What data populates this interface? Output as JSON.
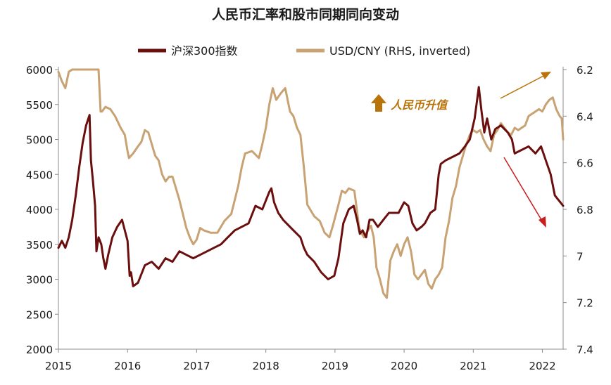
{
  "chart_data": {
    "type": "line",
    "title": "人民币汇率和股市同期同向变动",
    "annotation": "人民币升值",
    "left_axis": {
      "ylim": [
        2000,
        6000
      ],
      "ticks": [
        "2000",
        "2500",
        "3000",
        "3500",
        "4000",
        "4500",
        "5000",
        "5500",
        "6000"
      ]
    },
    "right_axis": {
      "ylim": [
        6.2,
        7.4
      ],
      "inverted": true,
      "ticks": [
        "6.2",
        "6.4",
        "6.6",
        "6.8",
        "7",
        "7.2",
        "7.4"
      ]
    },
    "x_axis": {
      "xlim": [
        2015.0,
        2022.3
      ],
      "ticks": [
        "2015",
        "2016",
        "2017",
        "2018",
        "2019",
        "2020",
        "2021",
        "2022"
      ]
    },
    "colors": {
      "csi300": "#6b0e0e",
      "usdcny": "#c8a273",
      "annot": "#b8730a",
      "arrow_up": "#b8730a",
      "arrow_down": "#c81e1e",
      "axis": "#8c8c8c"
    },
    "series": [
      {
        "name": "沪深300指数",
        "axis": "left",
        "x": [
          2015.0,
          2015.05,
          2015.1,
          2015.15,
          2015.2,
          2015.25,
          2015.3,
          2015.35,
          2015.4,
          2015.45,
          2015.47,
          2015.5,
          2015.53,
          2015.55,
          2015.58,
          2015.62,
          2015.65,
          2015.68,
          2015.72,
          2015.78,
          2015.85,
          2015.92,
          2015.96,
          2016.0,
          2016.03,
          2016.05,
          2016.08,
          2016.15,
          2016.25,
          2016.35,
          2016.45,
          2016.55,
          2016.65,
          2016.75,
          2016.85,
          2016.95,
          2017.05,
          2017.15,
          2017.25,
          2017.35,
          2017.45,
          2017.55,
          2017.65,
          2017.75,
          2017.85,
          2017.95,
          2018.05,
          2018.08,
          2018.12,
          2018.18,
          2018.25,
          2018.3,
          2018.4,
          2018.5,
          2018.55,
          2018.6,
          2018.7,
          2018.8,
          2018.9,
          2018.99,
          2019.05,
          2019.12,
          2019.2,
          2019.27,
          2019.32,
          2019.36,
          2019.4,
          2019.45,
          2019.5,
          2019.55,
          2019.62,
          2019.7,
          2019.78,
          2019.85,
          2019.92,
          2020.0,
          2020.06,
          2020.12,
          2020.18,
          2020.25,
          2020.3,
          2020.38,
          2020.45,
          2020.5,
          2020.53,
          2020.6,
          2020.7,
          2020.8,
          2020.88,
          2020.95,
          2021.02,
          2021.08,
          2021.12,
          2021.16,
          2021.2,
          2021.26,
          2021.32,
          2021.4,
          2021.5,
          2021.56,
          2021.6,
          2021.7,
          2021.8,
          2021.9,
          2021.98,
          2022.05,
          2022.12,
          2022.18,
          2022.22,
          2022.26,
          2022.3
        ],
        "values": [
          3450,
          3550,
          3450,
          3600,
          3850,
          4200,
          4600,
          4950,
          5200,
          5350,
          4700,
          4400,
          4050,
          3400,
          3600,
          3500,
          3300,
          3150,
          3350,
          3600,
          3750,
          3850,
          3700,
          3550,
          3050,
          3100,
          2900,
          2950,
          3200,
          3250,
          3150,
          3300,
          3250,
          3400,
          3350,
          3300,
          3350,
          3400,
          3450,
          3500,
          3600,
          3700,
          3750,
          3800,
          4050,
          4000,
          4250,
          4300,
          4100,
          3950,
          3850,
          3800,
          3700,
          3600,
          3450,
          3350,
          3250,
          3100,
          3000,
          3050,
          3300,
          3800,
          4000,
          4050,
          3850,
          3650,
          3700,
          3600,
          3850,
          3850,
          3750,
          3850,
          3950,
          3950,
          3950,
          4100,
          4050,
          3800,
          3700,
          3750,
          3800,
          3950,
          4000,
          4500,
          4650,
          4700,
          4750,
          4800,
          4900,
          5000,
          5300,
          5750,
          5400,
          5100,
          5300,
          5000,
          5150,
          5200,
          5100,
          5000,
          4800,
          4850,
          4900,
          4800,
          4900,
          4700,
          4500,
          4200,
          4150,
          4100,
          4050
        ]
      },
      {
        "name": "USD/CNY (RHS, inverted)",
        "axis": "right",
        "x": [
          2015.0,
          2015.05,
          2015.1,
          2015.15,
          2015.2,
          2015.3,
          2015.4,
          2015.5,
          2015.58,
          2015.61,
          2015.63,
          2015.68,
          2015.75,
          2015.82,
          2015.9,
          2015.96,
          2016.0,
          2016.02,
          2016.08,
          2016.15,
          2016.2,
          2016.25,
          2016.3,
          2016.35,
          2016.4,
          2016.45,
          2016.5,
          2016.55,
          2016.6,
          2016.65,
          2016.7,
          2016.75,
          2016.8,
          2016.85,
          2016.9,
          2016.95,
          2017.0,
          2017.05,
          2017.1,
          2017.2,
          2017.3,
          2017.4,
          2017.5,
          2017.55,
          2017.6,
          2017.65,
          2017.7,
          2017.8,
          2017.9,
          2017.95,
          2018.0,
          2018.05,
          2018.1,
          2018.15,
          2018.22,
          2018.28,
          2018.35,
          2018.4,
          2018.45,
          2018.5,
          2018.55,
          2018.6,
          2018.7,
          2018.78,
          2018.85,
          2018.92,
          2018.97,
          2019.05,
          2019.1,
          2019.15,
          2019.2,
          2019.28,
          2019.35,
          2019.38,
          2019.42,
          2019.48,
          2019.52,
          2019.56,
          2019.6,
          2019.65,
          2019.7,
          2019.75,
          2019.8,
          2019.85,
          2019.9,
          2019.95,
          2020.0,
          2020.05,
          2020.1,
          2020.15,
          2020.2,
          2020.25,
          2020.3,
          2020.35,
          2020.4,
          2020.45,
          2020.5,
          2020.55,
          2020.6,
          2020.65,
          2020.7,
          2020.75,
          2020.8,
          2020.85,
          2020.9,
          2020.95,
          2021.0,
          2021.05,
          2021.1,
          2021.15,
          2021.2,
          2021.25,
          2021.3,
          2021.35,
          2021.4,
          2021.45,
          2021.5,
          2021.55,
          2021.6,
          2021.65,
          2021.7,
          2021.75,
          2021.8,
          2021.85,
          2021.9,
          2021.95,
          2022.0,
          2022.05,
          2022.1,
          2022.15,
          2022.2,
          2022.25,
          2022.28,
          2022.3
        ],
        "values": [
          6.21,
          6.25,
          6.28,
          6.21,
          6.2,
          6.2,
          6.2,
          6.2,
          6.2,
          6.38,
          6.38,
          6.36,
          6.37,
          6.4,
          6.45,
          6.48,
          6.55,
          6.58,
          6.56,
          6.53,
          6.51,
          6.46,
          6.47,
          6.52,
          6.57,
          6.59,
          6.65,
          6.68,
          6.66,
          6.66,
          6.71,
          6.76,
          6.82,
          6.88,
          6.92,
          6.95,
          6.93,
          6.88,
          6.89,
          6.9,
          6.9,
          6.85,
          6.82,
          6.76,
          6.7,
          6.62,
          6.56,
          6.55,
          6.58,
          6.52,
          6.45,
          6.35,
          6.28,
          6.33,
          6.3,
          6.28,
          6.38,
          6.4,
          6.45,
          6.48,
          6.62,
          6.78,
          6.83,
          6.85,
          6.9,
          6.92,
          6.87,
          6.78,
          6.72,
          6.73,
          6.71,
          6.72,
          6.88,
          6.9,
          6.92,
          6.89,
          6.87,
          6.92,
          7.05,
          7.1,
          7.16,
          7.18,
          7.02,
          6.98,
          6.95,
          7.0,
          6.95,
          6.92,
          6.98,
          7.08,
          7.1,
          7.08,
          7.06,
          7.12,
          7.14,
          7.1,
          7.08,
          7.05,
          6.92,
          6.85,
          6.75,
          6.7,
          6.62,
          6.57,
          6.52,
          6.48,
          6.46,
          6.47,
          6.46,
          6.5,
          6.53,
          6.55,
          6.48,
          6.46,
          6.43,
          6.45,
          6.47,
          6.48,
          6.45,
          6.46,
          6.45,
          6.44,
          6.4,
          6.39,
          6.38,
          6.37,
          6.38,
          6.35,
          6.33,
          6.32,
          6.37,
          6.4,
          6.41,
          6.5
        ]
      }
    ]
  }
}
